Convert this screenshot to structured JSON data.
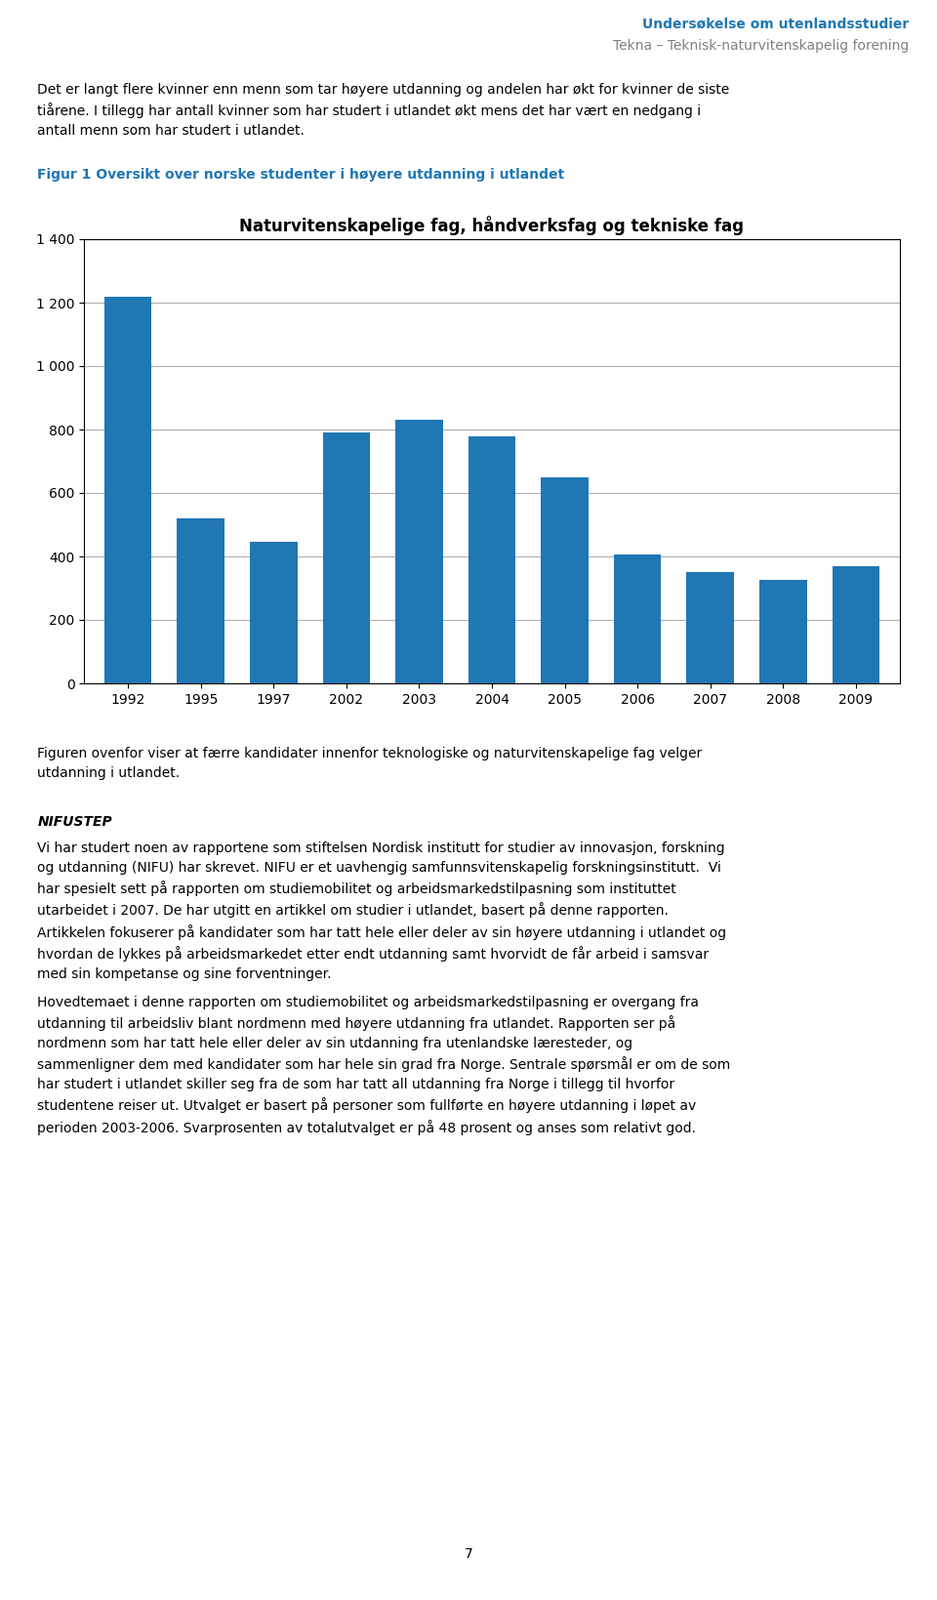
{
  "chart_data": {
    "type": "bar",
    "title": "Naturvitenskapelige fag, håndverksfag og tekniske fag",
    "categories": [
      "1992",
      "1995",
      "1997",
      "2002",
      "2003",
      "2004",
      "2005",
      "2006",
      "2007",
      "2008",
      "2009"
    ],
    "values": [
      1220,
      520,
      445,
      790,
      830,
      780,
      648,
      405,
      350,
      325,
      370
    ],
    "ylim": [
      0,
      1400
    ],
    "yticks": [
      0,
      200,
      400,
      600,
      800,
      {
        "value": 1000,
        "label": "1 000"
      },
      {
        "value": 1200,
        "label": "1 200"
      },
      {
        "value": 1400,
        "label": "1 400"
      }
    ],
    "grid": true,
    "annotations": [
      "Undersøkelse om utenlandsstudier",
      "Tekna – Teknisk-naturvitenskapelig forening",
      "Det er langt flere kvinner enn menn som tar høyere utdanning og andelen har økt for kvinner de siste\ntiårene. I tillegg har antall kvinner som har studert i utlandet økt mens det har vært en nedgang i\nantall menn som har studert i utlandet.",
      "Figur 1 Oversikt over norske studenter i høyere utdanning i utlandet",
      "Figuren ovenfor viser at færre kandidater innenfor teknologiske og naturvitenskapelige fag velger\nutdanning i utlandet.",
      "NIFUSTEP",
      "Vi har studert noen av rapportene som stiftelsen Nordisk institutt for studier av innovasjon, forskning\nog utdanning (NIFU) har skrevet. NIFU er et uavhengig samfunnsvitenskapelig forskningsinstitutt.  Vi\nhar spesielt sett på rapporten om studiemobilitet og arbeidsmarkedstilpasning som instituttet\nutarbeidet i 2007. De har utgitt en artikkel om studier i utlandet, basert på denne rapporten.\nArtikkelen fokuserer på kandidater som har tatt hele eller deler av sin høyere utdanning i utlandet og\nhvordan de lykkes på arbeidsmarkedet etter endt utdanning samt hvorvidt de får arbeid i samsvar\nmed sin kompetanse og sine forventninger.",
      "Hovedtemaet i denne rapporten om studiemobilitet og arbeidsmarkedstilpasning er overgang fra\nutdanning til arbeidsliv blant nordmenn med høyere utdanning fra utlandet. Rapporten ser på\nnordmenn som har tatt hele eller deler av sin utdanning fra utenlandske læresteder, og\nsammenligner dem med kandidater som har hele sin grad fra Norge. Sentrale spørsmål er om de som\nhar studert i utlandet skiller seg fra de som har tatt all utdanning fra Norge i tillegg til hvorfor\nstudentene reiser ut. Utvalget er basert på personer som fullførte en høyere utdanning i løpet av\nperioden 2003-2006. Svarprosenten av totalutvalget er på 48 prosent og anses som relativt god.",
      "7"
    ]
  }
}
